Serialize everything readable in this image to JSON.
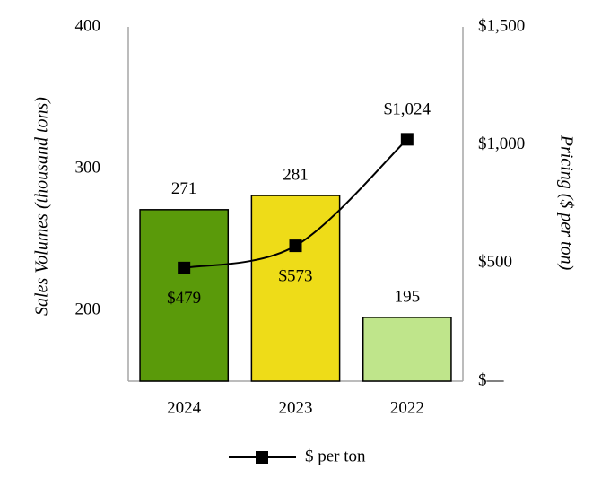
{
  "chart_data": {
    "type": "bar",
    "categories": [
      "2024",
      "2023",
      "2022"
    ],
    "series": [
      {
        "type": "bar",
        "colors": [
          "#5a9a0a",
          "#eedc18",
          "#bfe58b"
        ],
        "values": [
          271,
          281,
          195
        ]
      },
      {
        "type": "line",
        "name": "$ per ton",
        "color": "#000000",
        "axis": "y2",
        "values": [
          479,
          573,
          1024
        ],
        "value_labels": [
          "$479",
          "$573",
          "$1,024"
        ]
      }
    ],
    "y_label": "Sales Volumes (thousand tons)",
    "y2_label": "Pricing ($ per ton)",
    "ylim": [
      150,
      400
    ],
    "yticks": [
      200,
      300,
      400
    ],
    "y2lim": [
      0,
      1500
    ],
    "y2ticks": [
      {
        "value": 0,
        "label": "$—"
      },
      {
        "value": 500,
        "label": "$500"
      },
      {
        "value": 1000,
        "label": "$1,000"
      },
      {
        "value": 1500,
        "label": "$1,500"
      }
    ],
    "legend": "bottom",
    "grid": false
  }
}
